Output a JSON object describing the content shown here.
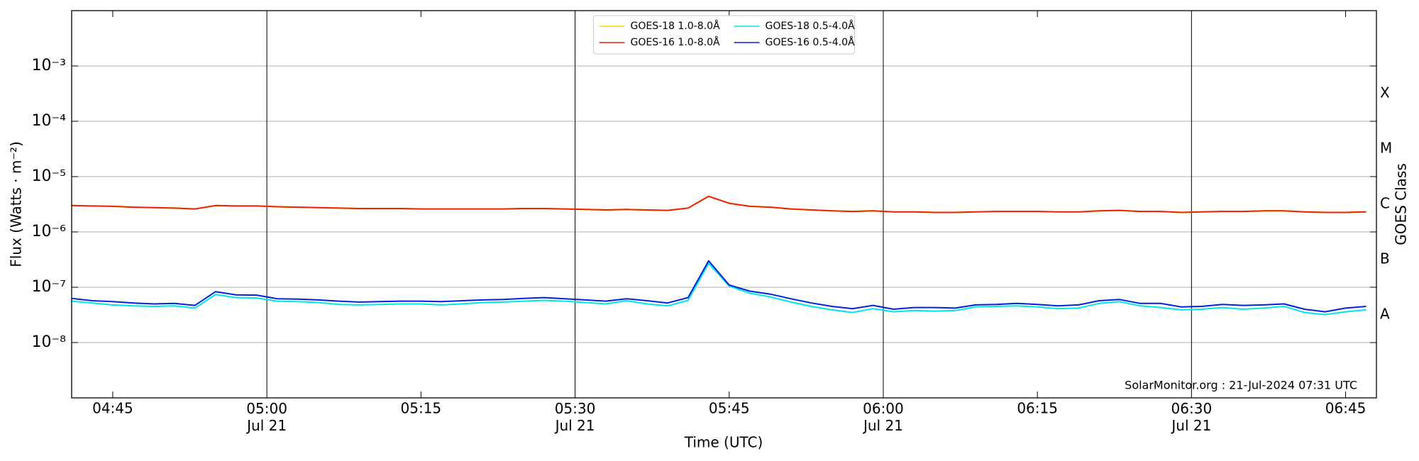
{
  "chart_data": {
    "type": "line",
    "xlabel": "Time (UTC)",
    "ylabel": "Flux (Watts · m⁻²)",
    "y2label": "GOES Class",
    "annotation": "SolarMonitor.org : 21-Jul-2024 07:31 UTC",
    "log_y": true,
    "grid": true,
    "legend": "upper center",
    "x": [
      "04:41",
      "04:43",
      "04:45",
      "04:47",
      "04:49",
      "04:51",
      "04:53",
      "04:55",
      "04:57",
      "04:59",
      "05:01",
      "05:03",
      "05:05",
      "05:07",
      "05:09",
      "05:11",
      "05:13",
      "05:15",
      "05:17",
      "05:19",
      "05:21",
      "05:23",
      "05:25",
      "05:27",
      "05:29",
      "05:31",
      "05:33",
      "05:35",
      "05:37",
      "05:39",
      "05:41",
      "05:43",
      "05:45",
      "05:47",
      "05:49",
      "05:51",
      "05:53",
      "05:55",
      "05:57",
      "05:59",
      "06:01",
      "06:03",
      "06:05",
      "06:07",
      "06:09",
      "06:11",
      "06:13",
      "06:15",
      "06:17",
      "06:19",
      "06:21",
      "06:23",
      "06:25",
      "06:27",
      "06:29",
      "06:31",
      "06:33",
      "06:35",
      "06:37",
      "06:39",
      "06:41",
      "06:43",
      "06:45",
      "06:47"
    ],
    "xlim": [
      "04:41",
      "06:48"
    ],
    "xticks": [
      "04:45",
      "05:15",
      "05:45",
      "06:15",
      "06:45"
    ],
    "xticks_major": [
      {
        "value": "05:00",
        "label": "05:00\nJul 21"
      },
      {
        "value": "05:30",
        "label": "05:30\nJul 21"
      },
      {
        "value": "06:00",
        "label": "06:00\nJul 21"
      },
      {
        "value": "06:30",
        "label": "06:30\nJul 21"
      }
    ],
    "ylim": [
      1e-09,
      0.01
    ],
    "yticks": [
      {
        "value": 1e-08,
        "label": "10⁻⁸"
      },
      {
        "value": 1e-07,
        "label": "10⁻⁷"
      },
      {
        "value": 1e-06,
        "label": "10⁻⁶"
      },
      {
        "value": 1e-05,
        "label": "10⁻⁵"
      },
      {
        "value": 0.0001,
        "label": "10⁻⁴"
      },
      {
        "value": 0.001,
        "label": "10⁻³"
      }
    ],
    "y2lim": [
      1e-09,
      0.01
    ],
    "y2ticks": [
      {
        "value": 3.16e-08,
        "label": "A"
      },
      {
        "value": 3.16e-07,
        "label": "B"
      },
      {
        "value": 3.16e-06,
        "label": "C"
      },
      {
        "value": 3.16e-05,
        "label": "M"
      },
      {
        "value": 0.000316,
        "label": "X"
      }
    ],
    "series": [
      {
        "name": "GOES-18 1.0-8.0Å",
        "color": "#ffd700",
        "values": [
          3e-06,
          2.95e-06,
          2.9e-06,
          2.8e-06,
          2.75e-06,
          2.7e-06,
          2.6e-06,
          3e-06,
          2.95e-06,
          2.95e-06,
          2.85e-06,
          2.8e-06,
          2.75e-06,
          2.7e-06,
          2.65e-06,
          2.65e-06,
          2.65e-06,
          2.6e-06,
          2.6e-06,
          2.6e-06,
          2.6e-06,
          2.6e-06,
          2.65e-06,
          2.65e-06,
          2.6e-06,
          2.55e-06,
          2.5e-06,
          2.55e-06,
          2.5e-06,
          2.45e-06,
          2.7e-06,
          4.4e-06,
          3.3e-06,
          2.9e-06,
          2.8e-06,
          2.6e-06,
          2.5e-06,
          2.4e-06,
          2.35e-06,
          2.4e-06,
          2.3e-06,
          2.3e-06,
          2.25e-06,
          2.25e-06,
          2.3e-06,
          2.35e-06,
          2.35e-06,
          2.35e-06,
          2.3e-06,
          2.3e-06,
          2.4e-06,
          2.45e-06,
          2.35e-06,
          2.35e-06,
          2.25e-06,
          2.3e-06,
          2.35e-06,
          2.35e-06,
          2.4e-06,
          2.4e-06,
          2.3e-06,
          2.25e-06,
          2.25e-06,
          2.3e-06
        ]
      },
      {
        "name": "GOES-16 1.0-8.0Å",
        "color": "#ee2200",
        "values": [
          3e-06,
          2.95e-06,
          2.9e-06,
          2.8e-06,
          2.75e-06,
          2.7e-06,
          2.6e-06,
          3e-06,
          2.95e-06,
          2.95e-06,
          2.85e-06,
          2.8e-06,
          2.75e-06,
          2.7e-06,
          2.65e-06,
          2.65e-06,
          2.65e-06,
          2.6e-06,
          2.6e-06,
          2.6e-06,
          2.6e-06,
          2.6e-06,
          2.65e-06,
          2.65e-06,
          2.6e-06,
          2.55e-06,
          2.5e-06,
          2.55e-06,
          2.5e-06,
          2.45e-06,
          2.7e-06,
          4.4e-06,
          3.3e-06,
          2.9e-06,
          2.8e-06,
          2.6e-06,
          2.5e-06,
          2.4e-06,
          2.35e-06,
          2.4e-06,
          2.3e-06,
          2.3e-06,
          2.25e-06,
          2.25e-06,
          2.3e-06,
          2.35e-06,
          2.35e-06,
          2.35e-06,
          2.3e-06,
          2.3e-06,
          2.4e-06,
          2.45e-06,
          2.35e-06,
          2.35e-06,
          2.25e-06,
          2.3e-06,
          2.35e-06,
          2.35e-06,
          2.4e-06,
          2.4e-06,
          2.3e-06,
          2.25e-06,
          2.25e-06,
          2.3e-06
        ]
      },
      {
        "name": "GOES-18 0.5-4.0Å",
        "color": "#00e5ee",
        "values": [
          5.6e-08,
          5.2e-08,
          4.8e-08,
          4.6e-08,
          4.5e-08,
          4.6e-08,
          4.2e-08,
          7.4e-08,
          6.5e-08,
          6.4e-08,
          5.6e-08,
          5.5e-08,
          5.3e-08,
          4.9e-08,
          4.8e-08,
          4.9e-08,
          5e-08,
          5e-08,
          4.8e-08,
          5e-08,
          5.3e-08,
          5.4e-08,
          5.6e-08,
          5.8e-08,
          5.6e-08,
          5.3e-08,
          5e-08,
          5.7e-08,
          5e-08,
          4.6e-08,
          5.8e-08,
          2.7e-07,
          1.05e-07,
          7.8e-08,
          6.7e-08,
          5.4e-08,
          4.5e-08,
          3.9e-08,
          3.5e-08,
          4.1e-08,
          3.6e-08,
          3.8e-08,
          3.7e-08,
          3.8e-08,
          4.4e-08,
          4.5e-08,
          4.6e-08,
          4.4e-08,
          4.1e-08,
          4.2e-08,
          5.1e-08,
          5.5e-08,
          4.6e-08,
          4.3e-08,
          3.9e-08,
          4e-08,
          4.3e-08,
          4e-08,
          4.2e-08,
          4.5e-08,
          3.5e-08,
          3.2e-08,
          3.6e-08,
          3.9e-08
        ]
      },
      {
        "name": "GOES-16 0.5-4.0Å",
        "color": "#0022dd",
        "values": [
          6.3e-08,
          5.7e-08,
          5.5e-08,
          5.2e-08,
          5e-08,
          5.1e-08,
          4.7e-08,
          8.3e-08,
          7.3e-08,
          7.2e-08,
          6.2e-08,
          6.1e-08,
          5.9e-08,
          5.6e-08,
          5.4e-08,
          5.5e-08,
          5.6e-08,
          5.6e-08,
          5.5e-08,
          5.7e-08,
          5.9e-08,
          6e-08,
          6.3e-08,
          6.5e-08,
          6.2e-08,
          5.9e-08,
          5.6e-08,
          6.2e-08,
          5.7e-08,
          5.2e-08,
          6.5e-08,
          3e-07,
          1.1e-07,
          8.5e-08,
          7.5e-08,
          6.2e-08,
          5.2e-08,
          4.5e-08,
          4.1e-08,
          4.7e-08,
          4e-08,
          4.3e-08,
          4.3e-08,
          4.2e-08,
          4.8e-08,
          4.9e-08,
          5.1e-08,
          4.9e-08,
          4.6e-08,
          4.8e-08,
          5.7e-08,
          6e-08,
          5.1e-08,
          5.1e-08,
          4.4e-08,
          4.5e-08,
          4.9e-08,
          4.7e-08,
          4.8e-08,
          5e-08,
          4e-08,
          3.6e-08,
          4.2e-08,
          4.5e-08
        ]
      }
    ]
  }
}
